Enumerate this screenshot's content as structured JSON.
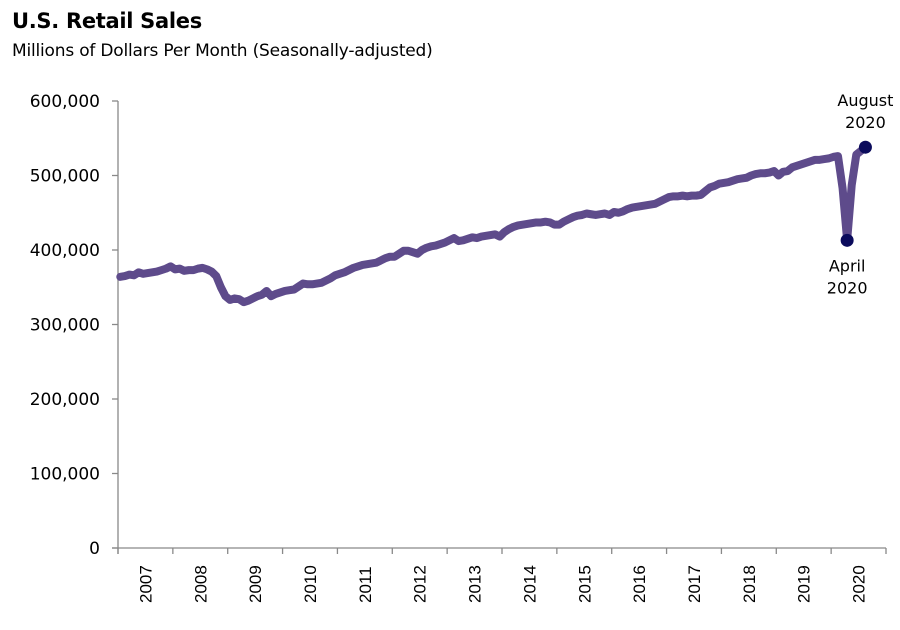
{
  "chart_data": {
    "type": "line",
    "title": "U.S. Retail Sales",
    "subtitle": "Millions of Dollars Per Month (Seasonally-adjusted)",
    "xlabel": "",
    "ylabel": "",
    "ylim": [
      0,
      600000
    ],
    "xlim": [
      "2007-01",
      "2020-08"
    ],
    "grid": false,
    "legend": "none",
    "y_ticks": [
      0,
      100000,
      200000,
      300000,
      400000,
      500000,
      600000
    ],
    "y_tick_labels": [
      "0",
      "100,000",
      "200,000",
      "300,000",
      "400,000",
      "500,000",
      "600,000"
    ],
    "x_tick_labels": [
      "2007",
      "2008",
      "2009",
      "2010",
      "2011",
      "2012",
      "2013",
      "2014",
      "2015",
      "2016",
      "2017",
      "2018",
      "2019",
      "2020"
    ],
    "line_color": "#5e4b8b",
    "marker_color": "#0b0b5c",
    "series": [
      {
        "name": "U.S. Retail Sales",
        "start": "2007-01",
        "frequency": "monthly",
        "values": [
          364000,
          365000,
          367000,
          366000,
          370000,
          368000,
          369000,
          370000,
          371000,
          373000,
          375000,
          378000,
          374000,
          375000,
          372000,
          373000,
          373000,
          375000,
          376000,
          374000,
          371000,
          365000,
          350000,
          338000,
          333000,
          335000,
          334000,
          330000,
          332000,
          335000,
          338000,
          340000,
          345000,
          338000,
          341000,
          343000,
          345000,
          346000,
          347000,
          351000,
          355000,
          354000,
          354000,
          355000,
          356000,
          359000,
          362000,
          366000,
          368000,
          370000,
          373000,
          376000,
          378000,
          380000,
          381000,
          382000,
          383000,
          386000,
          389000,
          391000,
          391000,
          395000,
          399000,
          399000,
          397000,
          395000,
          400000,
          403000,
          405000,
          406000,
          408000,
          410000,
          413000,
          416000,
          412000,
          413000,
          415000,
          417000,
          416000,
          418000,
          419000,
          420000,
          421000,
          418000,
          424000,
          428000,
          431000,
          433000,
          434000,
          435000,
          436000,
          437000,
          437000,
          438000,
          437000,
          434000,
          434000,
          438000,
          441000,
          444000,
          446000,
          447000,
          449000,
          448000,
          447000,
          448000,
          449000,
          447000,
          451000,
          450000,
          452000,
          455000,
          457000,
          458000,
          459000,
          460000,
          461000,
          462000,
          465000,
          468000,
          471000,
          472000,
          472000,
          473000,
          472000,
          473000,
          473000,
          474000,
          479000,
          484000,
          486000,
          489000,
          490000,
          491000,
          493000,
          495000,
          496000,
          497000,
          500000,
          502000,
          503000,
          503000,
          504000,
          506000,
          500000,
          505000,
          506000,
          511000,
          513000,
          515000,
          517000,
          519000,
          521000,
          521000,
          522000,
          523000,
          525000,
          526000,
          483000,
          413000,
          487000,
          528000,
          533000,
          538000
        ]
      }
    ],
    "annotations": [
      {
        "label_line1": "April",
        "label_line2": "2020",
        "date": "2020-04",
        "value": 413000,
        "position": "below"
      },
      {
        "label_line1": "August",
        "label_line2": "2020",
        "date": "2020-08",
        "value": 538000,
        "position": "above"
      }
    ]
  }
}
